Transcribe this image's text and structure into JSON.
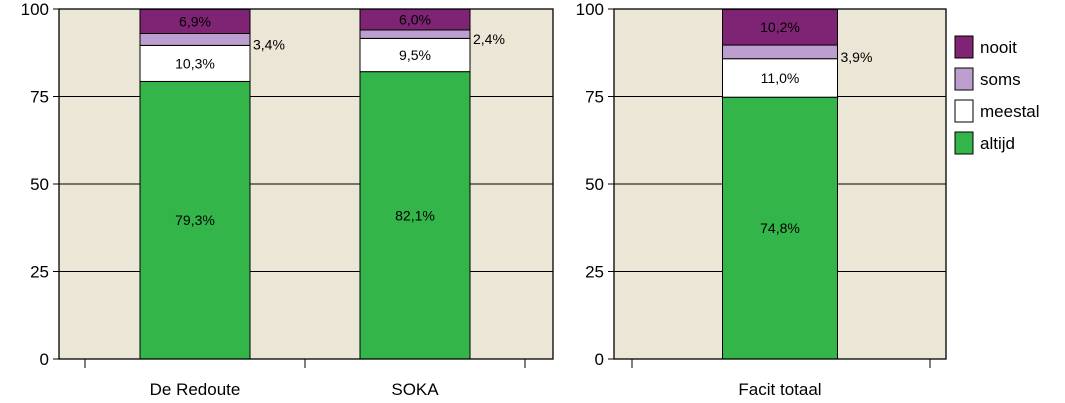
{
  "chart_data": [
    {
      "type": "bar",
      "stacked": true,
      "title": "",
      "xlabel": "",
      "ylabel": "",
      "ylim": [
        0,
        100
      ],
      "yticks": [
        "0",
        "25",
        "50",
        "75",
        "100"
      ],
      "grid": true,
      "categories": [
        "De Redoute",
        "SOKA"
      ],
      "series": [
        {
          "name": "altijd",
          "values": [
            79.3,
            82.1
          ],
          "labels": [
            "79,3%",
            "82,1%"
          ]
        },
        {
          "name": "meestal",
          "values": [
            10.3,
            9.5
          ],
          "labels": [
            "10,3%",
            "9,5%"
          ]
        },
        {
          "name": "soms",
          "values": [
            3.4,
            2.4
          ],
          "labels": [
            "3,4%",
            "2,4%"
          ]
        },
        {
          "name": "nooit",
          "values": [
            6.9,
            6.0
          ],
          "labels": [
            "6,9%",
            "6,0%"
          ]
        }
      ]
    },
    {
      "type": "bar",
      "stacked": true,
      "title": "",
      "xlabel": "",
      "ylabel": "",
      "ylim": [
        0,
        100
      ],
      "yticks": [
        "0",
        "25",
        "50",
        "75",
        "100"
      ],
      "grid": true,
      "legend_position": "right",
      "categories": [
        "Facit totaal"
      ],
      "series": [
        {
          "name": "altijd",
          "values": [
            74.8
          ],
          "labels": [
            "74,8%"
          ]
        },
        {
          "name": "meestal",
          "values": [
            11.0
          ],
          "labels": [
            "11,0%"
          ]
        },
        {
          "name": "soms",
          "values": [
            3.9
          ],
          "labels": [
            "3,9%"
          ]
        },
        {
          "name": "nooit",
          "values": [
            10.2
          ],
          "labels": [
            "10,2%"
          ]
        }
      ]
    }
  ],
  "legend": [
    {
      "name": "nooit",
      "color": "#7f2474"
    },
    {
      "name": "soms",
      "color": "#bc9fce"
    },
    {
      "name": "meestal",
      "color": "#ffffff"
    },
    {
      "name": "altijd",
      "color": "#33b54a"
    }
  ],
  "colors": {
    "altijd": "#33b54a",
    "meestal": "#ffffff",
    "soms": "#bc9fce",
    "nooit": "#7f2474",
    "plot_bg": "#ebe6d5"
  }
}
